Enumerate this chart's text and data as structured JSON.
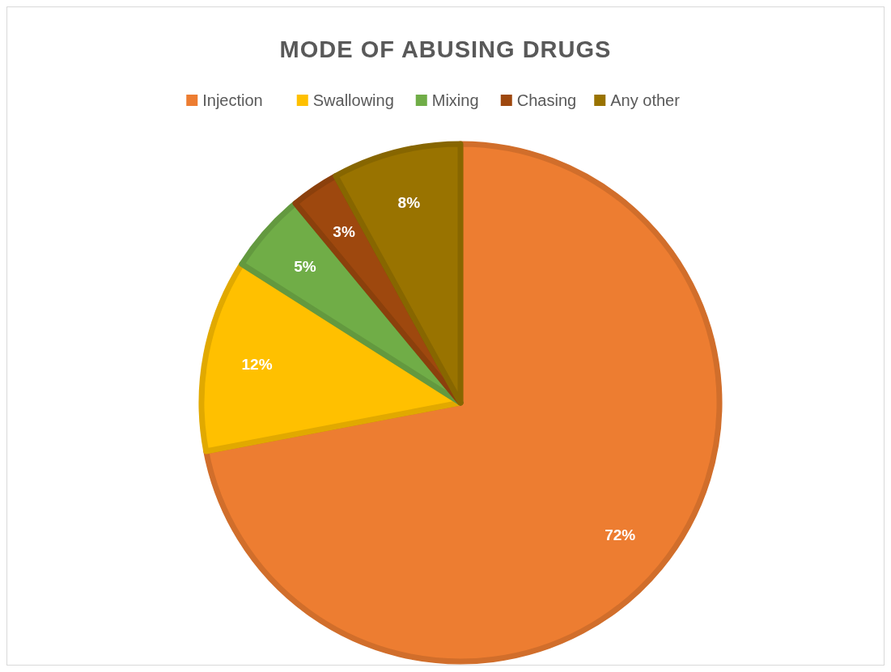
{
  "chart_data": {
    "type": "pie",
    "title": "MODE OF ABUSING DRUGS",
    "categories": [
      "Injection",
      "Swallowing",
      "Mixing",
      "Chasing",
      "Any other"
    ],
    "values": [
      72,
      12,
      5,
      3,
      8
    ],
    "colors": [
      "#ed7d31",
      "#ffc000",
      "#70ad47",
      "#9e480e",
      "#997300"
    ],
    "value_labels": [
      "72%",
      "12%",
      "5%",
      "3%",
      "8%"
    ],
    "legend": "top"
  }
}
